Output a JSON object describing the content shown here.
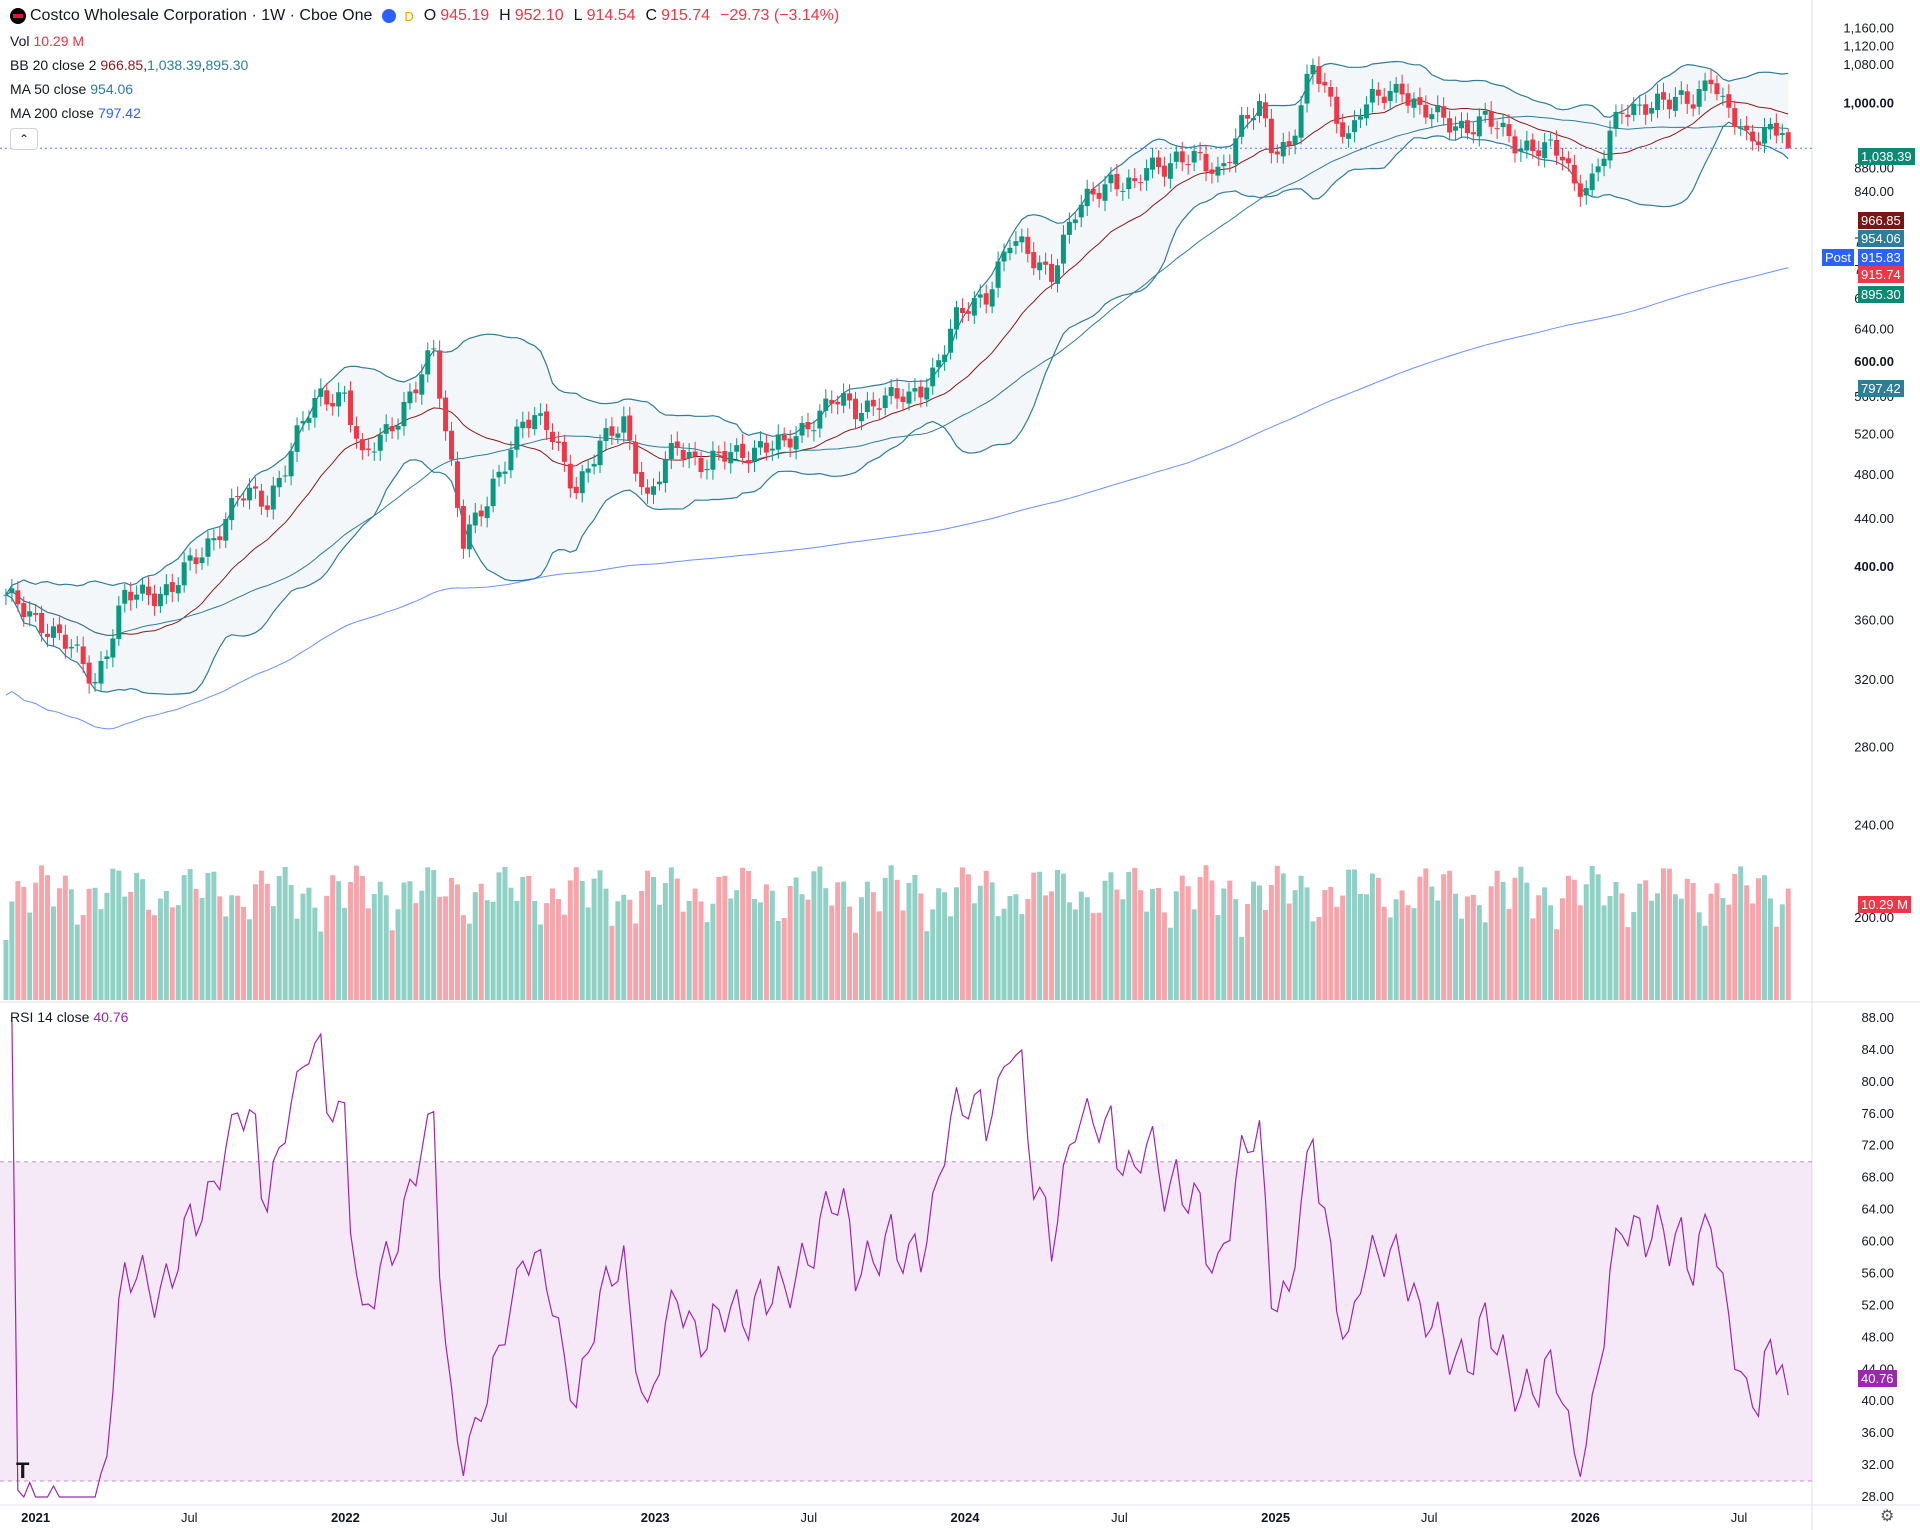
{
  "header": {
    "symbol_title": "Costco Wholesale Corporation · 1W · Cboe One",
    "open_label": "O",
    "open": "945.19",
    "high_label": "H",
    "high": "952.10",
    "low_label": "L",
    "low": "914.54",
    "close_label": "C",
    "close": "915.74",
    "change": "−29.73 (−3.14%)",
    "d_badge": "D"
  },
  "legend": {
    "vol_label": "Vol",
    "vol_value": "10.29 M",
    "bb_label": "BB 20 close 2",
    "bb_basis": "966.85",
    "bb_upper": "1,038.39",
    "bb_lower": "895.30",
    "ma50_label": "MA 50 close",
    "ma50_value": "954.06",
    "ma200_label": "MA 200 close",
    "ma200_value": "797.42",
    "rsi_label": "RSI 14 close",
    "rsi_value": "40.76"
  },
  "badges": {
    "bb_upper": "1,038.39",
    "bb_basis": "966.85",
    "ma50": "954.06",
    "post_label": "Post",
    "post_price": "915.83",
    "last_price": "915.74",
    "bb_lower": "895.30",
    "ma200": "797.42",
    "volume": "10.29 M",
    "rsi": "40.76"
  },
  "colors": {
    "up": "#089981",
    "down": "#F23645",
    "bb": "#2E7D99",
    "ma50": "#2E7D99",
    "ma200": "#2962FF",
    "basis": "#8B1A1A",
    "rsi": "#9C27B0"
  },
  "icons": {
    "collapse": "chevron-up-icon",
    "settings": "gear-icon",
    "logo": "tradingview-logo-icon"
  },
  "chart_data": [
    {
      "type": "candlestick",
      "title": "Costco Wholesale Corporation · 1W · Cboe One",
      "x_ticks": [
        "2021",
        "Jul",
        "2022",
        "Jul",
        "2023",
        "Jul",
        "2024",
        "Jul",
        "2025",
        "Jul",
        "2026",
        "Jul"
      ],
      "x_tick_dates": [
        "2021-01-01",
        "2021-07-01",
        "2022-01-01",
        "2022-07-01",
        "2023-01-01",
        "2023-07-01",
        "2024-01-01",
        "2024-07-01",
        "2025-01-01",
        "2025-07-01",
        "2026-01-01",
        "2026-07-01"
      ],
      "y_ticks": [
        "1,160.00",
        "1,120.00",
        "1,080.00",
        "1,000.00",
        "880.00",
        "840.00",
        "760.00",
        "720.00",
        "680.00",
        "640.00",
        "600.00",
        "560.00",
        "520.00",
        "480.00",
        "440.00",
        "400.00",
        "360.00",
        "320.00",
        "280.00",
        "240.00",
        "200.00"
      ],
      "y_tick_values": [
        1160,
        1120,
        1080,
        1000,
        880,
        840,
        760,
        720,
        680,
        640,
        600,
        560,
        520,
        480,
        440,
        400,
        360,
        320,
        280,
        240,
        200
      ],
      "y_bold_values": [
        1000,
        600,
        400
      ],
      "y_scale": "log",
      "ylim": [
        170,
        1180
      ],
      "close_keypoints": [
        [
          "2020-11-27",
          375
        ],
        [
          "2021-01-08",
          360
        ],
        [
          "2021-02-26",
          330
        ],
        [
          "2021-03-12",
          320
        ],
        [
          "2021-04-16",
          375
        ],
        [
          "2021-06-11",
          385
        ],
        [
          "2021-07-16",
          410
        ],
        [
          "2021-08-27",
          460
        ],
        [
          "2021-10-01",
          455
        ],
        [
          "2021-11-12",
          530
        ],
        [
          "2021-12-03",
          560
        ],
        [
          "2021-12-31",
          565
        ],
        [
          "2022-01-21",
          490
        ],
        [
          "2022-02-18",
          525
        ],
        [
          "2022-03-25",
          570
        ],
        [
          "2022-04-15",
          610
        ],
        [
          "2022-04-29",
          525
        ],
        [
          "2022-05-20",
          425
        ],
        [
          "2022-06-17",
          450
        ],
        [
          "2022-07-29",
          540
        ],
        [
          "2022-08-26",
          525
        ],
        [
          "2022-09-30",
          470
        ],
        [
          "2022-10-28",
          505
        ],
        [
          "2022-11-25",
          535
        ],
        [
          "2022-12-23",
          455
        ],
        [
          "2023-01-27",
          510
        ],
        [
          "2023-03-03",
          490
        ],
        [
          "2023-04-07",
          500
        ],
        [
          "2023-05-05",
          510
        ],
        [
          "2023-06-02",
          505
        ],
        [
          "2023-07-07",
          540
        ],
        [
          "2023-07-28",
          555
        ],
        [
          "2023-08-25",
          545
        ],
        [
          "2023-09-22",
          560
        ],
        [
          "2023-10-27",
          555
        ],
        [
          "2023-11-24",
          590
        ],
        [
          "2023-12-22",
          650
        ],
        [
          "2024-01-26",
          690
        ],
        [
          "2024-02-23",
          760
        ],
        [
          "2024-03-22",
          735
        ],
        [
          "2024-04-12",
          720
        ],
        [
          "2024-05-10",
          800
        ],
        [
          "2024-06-07",
          850
        ],
        [
          "2024-06-21",
          865
        ],
        [
          "2024-07-19",
          840
        ],
        [
          "2024-08-02",
          880
        ],
        [
          "2024-09-06",
          900
        ],
        [
          "2024-09-27",
          890
        ],
        [
          "2024-10-25",
          875
        ],
        [
          "2024-11-22",
          960
        ],
        [
          "2024-12-13",
          985
        ],
        [
          "2024-12-27",
          920
        ],
        [
          "2025-01-17",
          925
        ],
        [
          "2025-02-14",
          1070
        ],
        [
          "2025-03-07",
          1000
        ],
        [
          "2025-03-28",
          940
        ],
        [
          "2025-04-11",
          990
        ],
        [
          "2025-05-02",
          1005
        ],
        [
          "2025-05-30",
          1040
        ],
        [
          "2025-06-20",
          985
        ],
        [
          "2025-07-18",
          965
        ],
        [
          "2025-08-15",
          960
        ],
        [
          "2025-09-05",
          965
        ],
        [
          "2025-10-03",
          935
        ],
        [
          "2025-11-07",
          915
        ],
        [
          "2025-12-05",
          900
        ],
        [
          "2025-12-19",
          855
        ],
        [
          "2026-01-09",
          860
        ],
        [
          "2026-01-23",
          905
        ],
        [
          "2026-02-13",
          985
        ],
        [
          "2026-03-13",
          1005
        ],
        [
          "2026-04-10",
          995
        ],
        [
          "2026-05-08",
          1015
        ],
        [
          "2026-05-29",
          1060
        ],
        [
          "2026-06-12",
          990
        ],
        [
          "2026-07-10",
          935
        ],
        [
          "2026-07-31",
          955
        ],
        [
          "2026-08-21",
          945
        ],
        [
          "2026-08-28",
          915.74
        ]
      ],
      "last_candle": {
        "open": 945.19,
        "high": 952.1,
        "low": 914.54,
        "close": 915.74
      },
      "series": [
        {
          "name": "BB 20 close 2",
          "upper": 1038.39,
          "basis": 966.85,
          "lower": 895.3
        },
        {
          "name": "MA 50 close",
          "last": 954.06
        },
        {
          "name": "MA 200 close",
          "last": 797.42
        }
      ],
      "post_price": 915.83
    },
    {
      "type": "bar",
      "title": "Vol",
      "last_value": "10.29 M"
    },
    {
      "type": "line",
      "title": "RSI 14 close",
      "y_ticks": [
        "88.00",
        "84.00",
        "80.00",
        "76.00",
        "72.00",
        "68.00",
        "64.00",
        "60.00",
        "56.00",
        "52.00",
        "48.00",
        "44.00",
        "40.00",
        "36.00",
        "32.00",
        "28.00"
      ],
      "y_tick_values": [
        88,
        84,
        80,
        76,
        72,
        68,
        64,
        60,
        56,
        52,
        48,
        44,
        40,
        36,
        32,
        28
      ],
      "ylim": [
        27,
        89
      ],
      "band": [
        30,
        70
      ],
      "last_value": 40.76
    }
  ]
}
